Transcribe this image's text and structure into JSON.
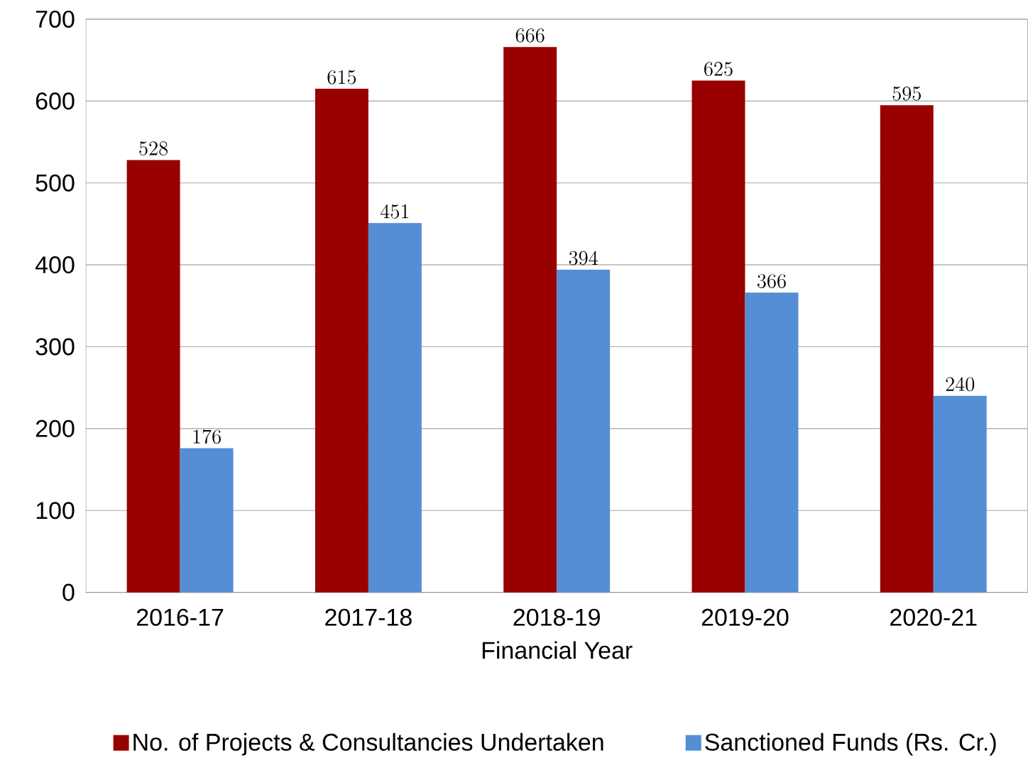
{
  "chart_data": {
    "type": "bar",
    "xlabel": "Financial Year",
    "categories": [
      "2016-17",
      "2017-18",
      "2018-19",
      "2019-20",
      "2020-21"
    ],
    "series": [
      {
        "name": "No. of Projects & Consultancies Undertaken",
        "color": "#990000",
        "values": [
          528,
          615,
          666,
          625,
          595
        ]
      },
      {
        "name": "Sanctioned Funds (Rs. Cr.)",
        "color": "#558ed5",
        "values": [
          176,
          451,
          394,
          366,
          240
        ]
      }
    ],
    "ylim": [
      0,
      700
    ],
    "yticks": [
      0,
      100,
      200,
      300,
      400,
      500,
      600,
      700
    ],
    "grid": "y",
    "legend": "bottom",
    "data_labels": true
  }
}
